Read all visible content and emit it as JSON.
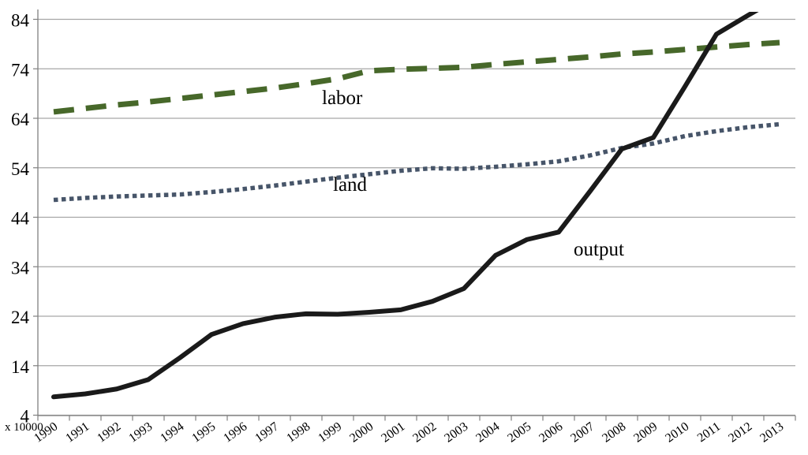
{
  "chart_data": {
    "type": "line",
    "title": "",
    "xlabel": "",
    "ylabel": "",
    "axis_note": "x 10000",
    "grid": true,
    "legend": "inline-labels",
    "ylim": [
      4,
      85.4
    ],
    "yticks": [
      4,
      14,
      24,
      34,
      44,
      54,
      64,
      74,
      84
    ],
    "categories": [
      "1990",
      "1991",
      "1992",
      "1993",
      "1994",
      "1995",
      "1996",
      "1997",
      "1998",
      "1999",
      "2000",
      "2001",
      "2002",
      "2003",
      "2004",
      "2005",
      "2006",
      "2007",
      "2008",
      "2009",
      "2010",
      "2011",
      "2012",
      "2013"
    ],
    "series": [
      {
        "name": "labor",
        "style": "dashed",
        "color": "#47682a",
        "values": [
          65.3,
          66.0,
          66.7,
          67.3,
          68.0,
          68.7,
          69.4,
          70.1,
          71.0,
          72.0,
          73.6,
          73.9,
          74.1,
          74.3,
          74.9,
          75.4,
          75.9,
          76.4,
          77.0,
          77.4,
          77.9,
          78.4,
          78.9,
          79.3
        ]
      },
      {
        "name": "land",
        "style": "dotted",
        "color": "#475569",
        "values": [
          47.5,
          47.9,
          48.2,
          48.4,
          48.6,
          49.1,
          49.7,
          50.4,
          51.2,
          52.0,
          52.7,
          53.4,
          53.9,
          53.8,
          54.2,
          54.7,
          55.3,
          56.5,
          58.0,
          58.9,
          60.4,
          61.4,
          62.2,
          62.8
        ]
      },
      {
        "name": "output",
        "style": "solid",
        "color": "#1a1a1a",
        "values": [
          7.7,
          8.3,
          9.3,
          11.2,
          15.6,
          20.3,
          22.5,
          23.8,
          24.5,
          24.4,
          24.8,
          25.3,
          27.0,
          29.6,
          36.3,
          39.5,
          41.0,
          49.3,
          57.8,
          60.1,
          70.4,
          81.0,
          84.8,
          88.5
        ]
      }
    ],
    "colors": {
      "gridline": "#a6a6a6",
      "axis": "#808080",
      "background": "#ffffff",
      "text": "#000000"
    }
  }
}
